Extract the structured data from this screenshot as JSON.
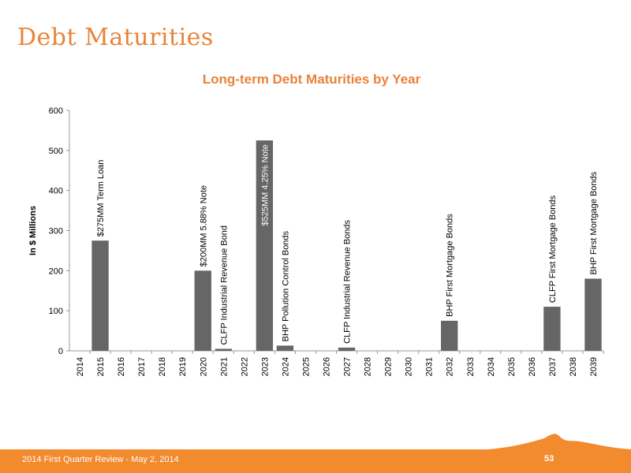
{
  "slide": {
    "title": "Debt Maturities",
    "footer": "2014 First Quarter Review - May 2, 2014",
    "page_number": "53"
  },
  "colors": {
    "accent": "#f28a2e",
    "title": "#e8833a",
    "bar": "#666666"
  },
  "chart_data": {
    "type": "bar",
    "title": "Long-term Debt Maturities by Year",
    "xlabel": "",
    "ylabel": "In $ Millions",
    "ylim": [
      0,
      600
    ],
    "yticks": [
      0,
      100,
      200,
      300,
      400,
      500,
      600
    ],
    "grid": false,
    "categories": [
      "2014",
      "2015",
      "2016",
      "2017",
      "2018",
      "2019",
      "2020",
      "2021",
      "2022",
      "2023",
      "2024",
      "2025",
      "2026",
      "2027",
      "2028",
      "2029",
      "2030",
      "2031",
      "2032",
      "2033",
      "2034",
      "2035",
      "2036",
      "2037",
      "2038",
      "2039"
    ],
    "values": [
      0,
      275,
      0,
      0,
      0,
      0,
      200,
      5,
      0,
      525,
      13,
      0,
      0,
      8,
      0,
      0,
      0,
      0,
      75,
      0,
      0,
      0,
      0,
      110,
      0,
      180
    ],
    "annotations": [
      {
        "category": "2015",
        "text": "$275MM Term Loan",
        "inside": false
      },
      {
        "category": "2020",
        "text": "$200MM 5.88% Note",
        "inside": false
      },
      {
        "category": "2021",
        "text": "CLFP Industrial Revenue Bond",
        "inside": false
      },
      {
        "category": "2023",
        "text": "$525MM 4.25% Note",
        "inside": true
      },
      {
        "category": "2024",
        "text": "BHP Pollution Control Bonds",
        "inside": false
      },
      {
        "category": "2027",
        "text": "CLFP Industrial Revenue Bonds",
        "inside": false
      },
      {
        "category": "2032",
        "text": "BHP First Mortgage Bonds",
        "inside": false
      },
      {
        "category": "2037",
        "text": "CLFP First Mortgage Bonds",
        "inside": false
      },
      {
        "category": "2039",
        "text": "BHP First Mortgage Bonds",
        "inside": false
      }
    ]
  }
}
